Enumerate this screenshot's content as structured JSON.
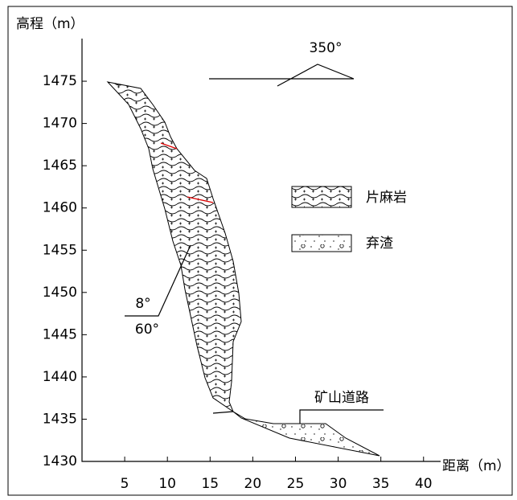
{
  "chart_data": {
    "type": "profile",
    "y_label": "高程（m）",
    "x_label": "距离（m）",
    "xlim": [
      0,
      42
    ],
    "xticks": [
      5,
      10,
      15,
      20,
      25,
      30,
      35,
      40
    ],
    "ylim": [
      1430,
      1480
    ],
    "yticks": [
      1430,
      1435,
      1440,
      1445,
      1450,
      1455,
      1460,
      1465,
      1470,
      1475
    ],
    "legend": [
      "片麻岩",
      "弃渣"
    ],
    "annotations": {
      "strike": "350°",
      "dip": "8°",
      "dip_angle": "60°",
      "road": "矿山道路"
    }
  }
}
